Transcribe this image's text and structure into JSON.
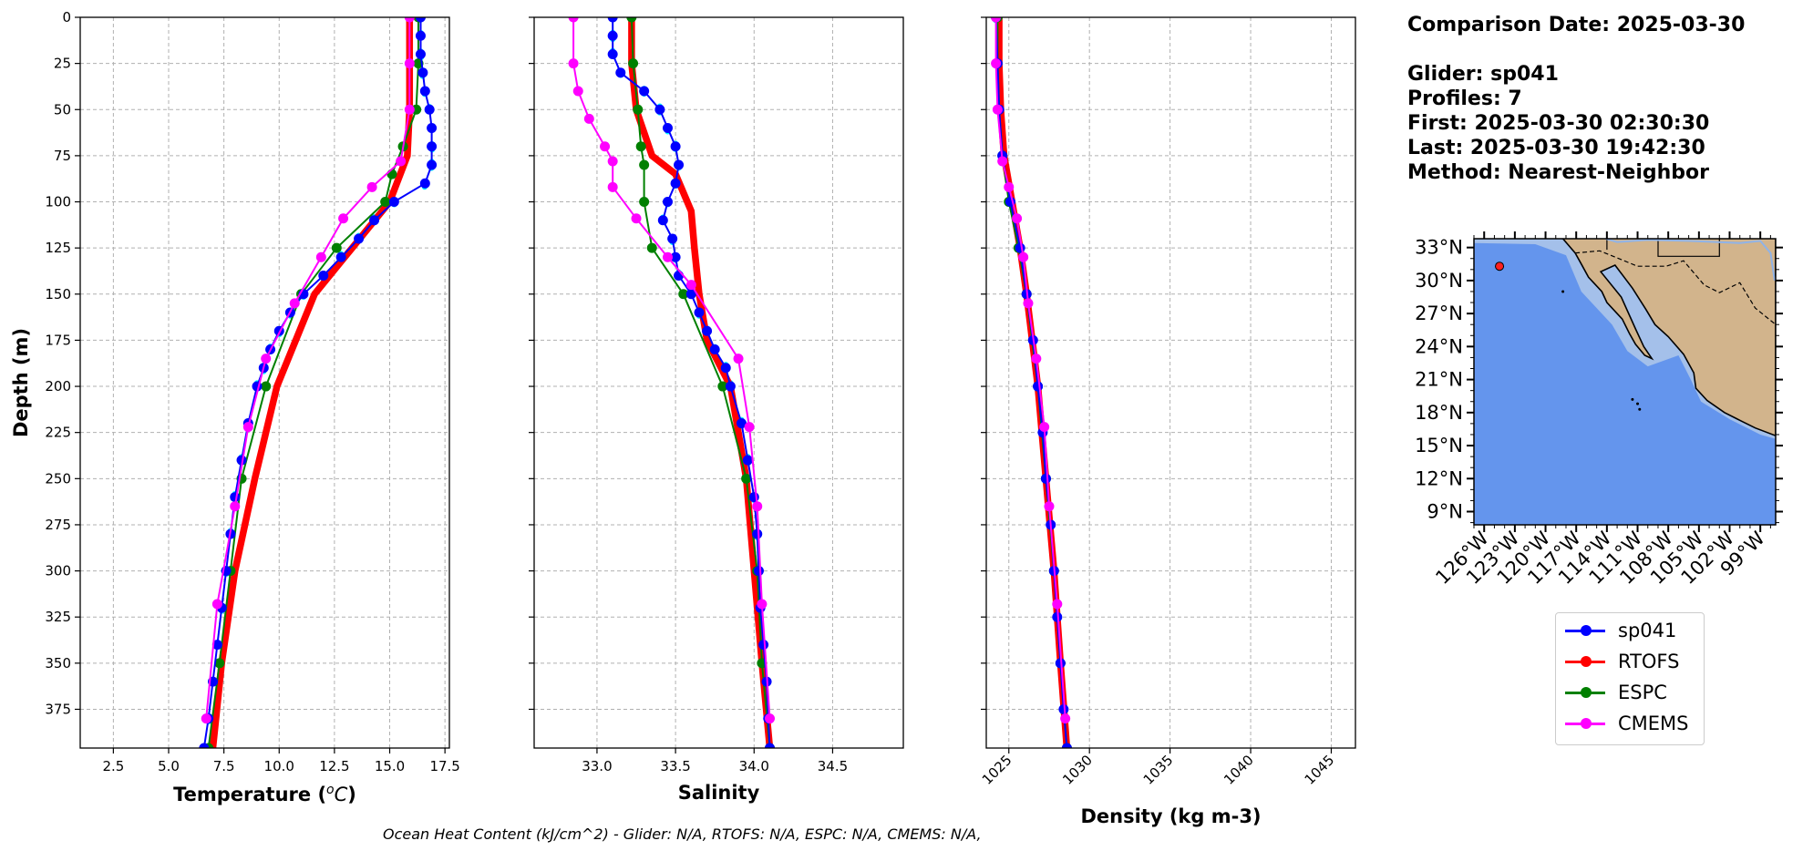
{
  "info": {
    "date_line": "Comparison Date: 2025-03-30",
    "glider_line": "Glider: sp041",
    "profiles_line": "Profiles: 7",
    "first_line": "First: 2025-03-30 02:30:30",
    "last_line": "Last: 2025-03-30 19:42:30",
    "method_line": "Method: Nearest-Neighbor"
  },
  "footer": "Ocean Heat Content (kJ/cm^2) - Glider: N/A,  RTOFS: N/A,  ESPC: N/A,  CMEMS: N/A,",
  "colors": {
    "sp041": "#0000ff",
    "RTOFS": "#ff0000",
    "ESPC": "#008000",
    "CMEMS": "#ff00ff",
    "raw": "#00ffff",
    "ocean": "#6495ed",
    "land": "#d2b48c"
  },
  "legend": [
    "sp041",
    "RTOFS",
    "ESPC",
    "CMEMS"
  ],
  "map": {
    "lat_ticks": [
      "33°N",
      "30°N",
      "27°N",
      "24°N",
      "21°N",
      "18°N",
      "15°N",
      "12°N",
      "9°N"
    ],
    "lon_ticks": [
      "126°W",
      "123°W",
      "120°W",
      "117°W",
      "114°W",
      "111°W",
      "108°W",
      "105°W",
      "102°W",
      "99°W"
    ],
    "marker": {
      "lon": -124.5,
      "lat": 31.3
    }
  },
  "chart_data": [
    {
      "type": "line",
      "xlabel": "Temperature ($^oC$)",
      "ylabel": "Depth (m)",
      "xlim": [
        1.0,
        17.7
      ],
      "ylim": [
        396,
        0
      ],
      "x_ticks": [
        2.5,
        5.0,
        7.5,
        10.0,
        12.5,
        15.0,
        17.5
      ],
      "y_ticks": [
        0,
        25,
        50,
        75,
        100,
        125,
        150,
        175,
        200,
        225,
        250,
        275,
        300,
        325,
        350,
        375
      ],
      "grid": true,
      "series": [
        {
          "name": "sp041",
          "depth": [
            0,
            10,
            20,
            30,
            40,
            50,
            60,
            70,
            80,
            90,
            100,
            110,
            120,
            130,
            140,
            150,
            160,
            170,
            180,
            190,
            200,
            220,
            240,
            260,
            280,
            300,
            320,
            340,
            360,
            380,
            396
          ],
          "values": [
            16.4,
            16.4,
            16.4,
            16.5,
            16.6,
            16.8,
            16.9,
            16.9,
            16.9,
            16.6,
            15.2,
            14.3,
            13.6,
            12.8,
            12.0,
            11.1,
            10.5,
            10.0,
            9.6,
            9.3,
            9.0,
            8.6,
            8.3,
            8.0,
            7.8,
            7.6,
            7.4,
            7.2,
            7.0,
            6.8,
            6.6
          ]
        },
        {
          "name": "RTOFS",
          "depth": [
            0,
            25,
            50,
            75,
            100,
            125,
            150,
            200,
            250,
            300,
            350,
            396
          ],
          "values": [
            15.9,
            15.9,
            15.9,
            15.8,
            15.0,
            13.3,
            11.6,
            9.9,
            8.9,
            8.0,
            7.4,
            7.0
          ]
        },
        {
          "name": "ESPC",
          "depth": [
            0,
            25,
            50,
            70,
            85,
            100,
            125,
            150,
            200,
            250,
            300,
            350,
            396
          ],
          "values": [
            16.3,
            16.3,
            16.2,
            15.6,
            15.1,
            14.8,
            12.6,
            11.0,
            9.4,
            8.3,
            7.8,
            7.3,
            6.8
          ]
        },
        {
          "name": "CMEMS",
          "depth": [
            0,
            25,
            50,
            78,
            92,
            109,
            130,
            155,
            185,
            222,
            265,
            318,
            380
          ],
          "values": [
            15.9,
            15.9,
            15.9,
            15.5,
            14.2,
            12.9,
            11.9,
            10.7,
            9.4,
            8.6,
            8.0,
            7.2,
            6.7
          ]
        }
      ]
    },
    {
      "type": "line",
      "xlabel": "Salinity",
      "ylim": [
        396,
        0
      ],
      "xlim": [
        32.6,
        34.95
      ],
      "x_ticks": [
        33.0,
        33.5,
        34.0,
        34.5
      ],
      "grid": true,
      "series": [
        {
          "name": "sp041",
          "depth": [
            0,
            10,
            20,
            30,
            40,
            50,
            60,
            70,
            80,
            90,
            100,
            110,
            120,
            130,
            140,
            150,
            160,
            170,
            180,
            190,
            200,
            220,
            240,
            260,
            280,
            300,
            320,
            340,
            360,
            380,
            396
          ],
          "values": [
            33.1,
            33.1,
            33.1,
            33.15,
            33.3,
            33.4,
            33.45,
            33.5,
            33.52,
            33.5,
            33.45,
            33.42,
            33.48,
            33.5,
            33.52,
            33.6,
            33.65,
            33.7,
            33.75,
            33.82,
            33.85,
            33.92,
            33.96,
            34.0,
            34.02,
            34.03,
            34.04,
            34.06,
            34.08,
            34.09,
            34.1
          ]
        },
        {
          "name": "RTOFS",
          "depth": [
            0,
            25,
            50,
            75,
            85,
            95,
            105,
            125,
            150,
            175,
            200,
            250,
            300,
            350,
            396
          ],
          "values": [
            33.22,
            33.22,
            33.25,
            33.35,
            33.5,
            33.55,
            33.6,
            33.62,
            33.65,
            33.7,
            33.85,
            33.95,
            34.0,
            34.05,
            34.1
          ]
        },
        {
          "name": "ESPC",
          "depth": [
            0,
            25,
            50,
            70,
            80,
            100,
            125,
            150,
            200,
            250,
            300,
            350,
            396
          ],
          "values": [
            33.22,
            33.23,
            33.26,
            33.28,
            33.3,
            33.3,
            33.35,
            33.55,
            33.8,
            33.95,
            34.02,
            34.05,
            34.1
          ]
        },
        {
          "name": "CMEMS",
          "depth": [
            0,
            25,
            40,
            55,
            70,
            78,
            92,
            109,
            130,
            145,
            185,
            222,
            265,
            318,
            380
          ],
          "values": [
            32.85,
            32.85,
            32.88,
            32.95,
            33.05,
            33.1,
            33.1,
            33.25,
            33.45,
            33.6,
            33.9,
            33.97,
            34.02,
            34.05,
            34.1
          ]
        }
      ]
    },
    {
      "type": "line",
      "xlabel": "Density (kg m-3)",
      "ylim": [
        396,
        0
      ],
      "xlim": [
        1023.6,
        1046.5
      ],
      "x_ticks": [
        1025,
        1030,
        1035,
        1040,
        1045
      ],
      "grid": true,
      "series": [
        {
          "name": "sp041",
          "depth": [
            0,
            25,
            50,
            75,
            100,
            125,
            150,
            175,
            200,
            225,
            250,
            275,
            300,
            325,
            350,
            375,
            396
          ],
          "values": [
            1024.2,
            1024.3,
            1024.4,
            1024.6,
            1025.1,
            1025.7,
            1026.1,
            1026.5,
            1026.8,
            1027.1,
            1027.3,
            1027.6,
            1027.8,
            1028.0,
            1028.2,
            1028.4,
            1028.6
          ]
        },
        {
          "name": "RTOFS",
          "depth": [
            0,
            25,
            50,
            75,
            100,
            125,
            150,
            200,
            250,
            300,
            350,
            396
          ],
          "values": [
            1024.4,
            1024.4,
            1024.5,
            1024.7,
            1025.2,
            1025.7,
            1026.1,
            1026.8,
            1027.3,
            1027.8,
            1028.2,
            1028.6
          ]
        },
        {
          "name": "ESPC",
          "depth": [
            0,
            25,
            50,
            75,
            100,
            125,
            150,
            200,
            250,
            300,
            350,
            396
          ],
          "values": [
            1024.3,
            1024.3,
            1024.4,
            1024.6,
            1025.0,
            1025.6,
            1026.1,
            1026.8,
            1027.3,
            1027.8,
            1028.2,
            1028.6
          ]
        },
        {
          "name": "CMEMS",
          "depth": [
            0,
            25,
            50,
            78,
            92,
            109,
            130,
            155,
            185,
            222,
            265,
            318,
            380
          ],
          "values": [
            1024.2,
            1024.2,
            1024.3,
            1024.6,
            1025.0,
            1025.5,
            1025.9,
            1026.2,
            1026.7,
            1027.2,
            1027.5,
            1028.0,
            1028.5
          ]
        }
      ]
    }
  ]
}
